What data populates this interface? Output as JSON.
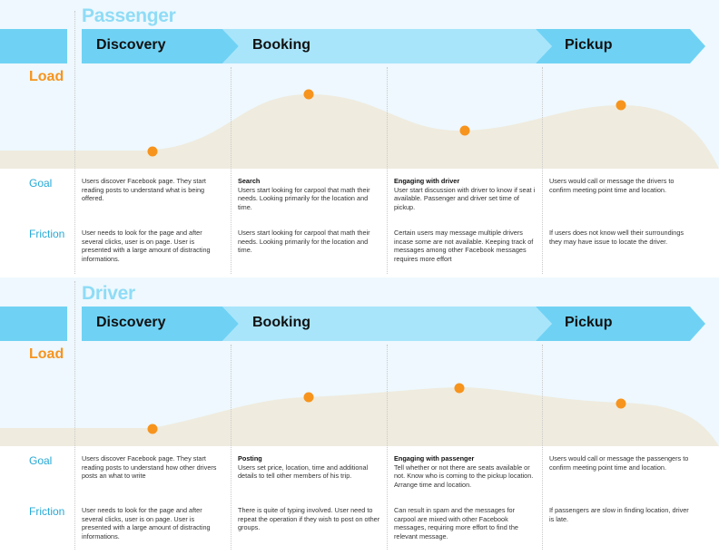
{
  "sections": [
    {
      "title": "Passenger",
      "stages": [
        "Discovery",
        "Booking",
        "Pickup"
      ],
      "load_label": "Load",
      "load_levels": [
        0.1,
        0.78,
        0.33,
        0.62
      ],
      "goal_label": "Goal",
      "friction_label": "Friction",
      "goals": [
        {
          "heading": "",
          "text": "Users discover Facebook page. They start reading posts to understand what is being offered."
        },
        {
          "heading": "Search",
          "text": "Users start looking for carpool that math their needs. Looking primarily for the location and time."
        },
        {
          "heading": "Engaging with driver",
          "text": "User start discussion with driver to know if seat i available. Passenger and driver set time of pickup."
        },
        {
          "heading": "",
          "text": "Users would call or message the drivers to confirm meeting point time and location."
        }
      ],
      "frictions": [
        "User needs to look for the page and after several clicks, user is on page. User is presented with a large amount of distracting informations.",
        "Users start looking for carpool that math their needs. Looking primarily for the location and time.",
        "Certain users may message multiple drivers incase some are not available. Keeping track of messages among other Facebook messages requires more effort",
        "If users does not know well their surroundings they may have issue to locate the driver."
      ]
    },
    {
      "title": "Driver",
      "stages": [
        "Discovery",
        "Booking",
        "Pickup"
      ],
      "load_label": "Load",
      "load_levels": [
        0.1,
        0.4,
        0.52,
        0.36
      ],
      "goal_label": "Goal",
      "friction_label": "Friction",
      "goals": [
        {
          "heading": "",
          "text": "Users discover Facebook page. They start reading posts to understand how other drivers posts an what to write"
        },
        {
          "heading": "Posting",
          "text": "Users set price, location, time and additional details to tell other members of his trip."
        },
        {
          "heading": "Engaging with passenger",
          "text": "Tell whether or not there are seats available or not. Know who is coming to the pickup location. Arrange time and location."
        },
        {
          "heading": "",
          "text": "Users would call or message the passengers to confirm meeting point time and location."
        }
      ],
      "frictions": [
        "User needs to look for the page and after several clicks, user is on page. User is presented with a large amount of distracting informations.",
        "There is quite of typing involved. User need to repeat the operation if they wish to post on other groups.",
        "Can result in spam and the messages for carpool are mixed with other Facebook messages, requiring more effort to find the relevant message.",
        "If passengers are slow in finding location, driver is late."
      ]
    }
  ],
  "colors": {
    "band_bg": "#eef8fe",
    "stage_arrow_dark": "#6fd2f4",
    "stage_arrow_light": "#a8e5fb",
    "load_dot": "#f7941d",
    "load_area": "#efebde",
    "label_blue": "#27a9d6"
  }
}
